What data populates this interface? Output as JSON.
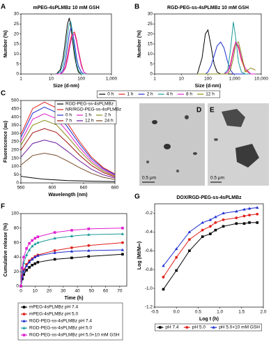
{
  "chart_data": [
    {
      "type": "line",
      "panel": "A",
      "title": "mPEG-4sPLMBz 10 mM GSH",
      "x_label": "Size (d-nm)",
      "y_label": "Number (%)",
      "log_x": true,
      "xlim": [
        1,
        1000
      ],
      "xticks": [
        1,
        10,
        100,
        {
          "value": 1000,
          "label": "1,000"
        }
      ],
      "ylim": [
        0,
        30
      ],
      "yticks": [
        0,
        5,
        10,
        15,
        20,
        25,
        30
      ],
      "x": [
        15,
        20,
        25,
        30,
        35,
        40,
        45,
        50,
        60,
        70,
        80,
        100,
        120,
        150
      ],
      "series": [
        {
          "color": "#000000",
          "values": [
            0,
            2,
            8,
            17,
            25,
            28,
            24,
            18,
            9,
            4,
            1,
            0,
            0,
            0
          ]
        },
        {
          "color": "#e0201b",
          "values": [
            0,
            0,
            1,
            4,
            9,
            14,
            18,
            20,
            21,
            17,
            12,
            5,
            1,
            0
          ]
        },
        {
          "color": "#1f2fd0",
          "values": [
            0,
            0,
            2,
            7,
            14,
            20,
            23,
            22,
            15,
            8,
            4,
            1,
            0,
            0
          ]
        },
        {
          "color": "#1a9a9a",
          "values": [
            0,
            1,
            5,
            12,
            20,
            25,
            26,
            22,
            12,
            5,
            2,
            0,
            0,
            0
          ]
        },
        {
          "color": "#e020d0",
          "values": [
            0,
            0,
            1,
            3,
            7,
            12,
            16,
            19,
            20,
            16,
            11,
            4,
            1,
            0
          ]
        }
      ]
    },
    {
      "type": "line",
      "panel": "B",
      "title": "RGD-PEG-ss-4sPLMBz 10 mM GSH",
      "x_label": "Size (d-nm)",
      "y_label": "Number (%)",
      "log_x": true,
      "legend": "bottom-row",
      "xlim": [
        1,
        10000
      ],
      "xticks": [
        1,
        10,
        100,
        {
          "value": 1000,
          "label": "1,000"
        },
        {
          "value": 10000,
          "label": "10,000"
        }
      ],
      "ylim": [
        0,
        30
      ],
      "yticks": [
        0,
        5,
        10,
        15,
        20,
        25,
        30
      ],
      "x": [
        40,
        60,
        80,
        100,
        130,
        170,
        220,
        300,
        400,
        550,
        700,
        900,
        1100,
        1400,
        1800,
        2500,
        4000,
        6000
      ],
      "series": [
        {
          "name": "0 h",
          "color": "#000000",
          "values": [
            0,
            8,
            20,
            22,
            14,
            5,
            1,
            0,
            0,
            0,
            0,
            0,
            0,
            0,
            0,
            0,
            0,
            0
          ]
        },
        {
          "name": "1 h",
          "color": "#e0201b",
          "values": [
            0,
            0,
            0,
            0,
            0,
            0,
            0,
            0,
            0,
            1,
            5,
            12,
            16,
            13,
            7,
            2,
            0,
            0
          ]
        },
        {
          "name": "2 h",
          "color": "#1f2fd0",
          "values": [
            0,
            0,
            0,
            1,
            4,
            9,
            14,
            16,
            13,
            6,
            2,
            0,
            0,
            0,
            0,
            0,
            0,
            0
          ]
        },
        {
          "name": "4 h",
          "color": "#1a9a9a",
          "values": [
            0,
            0,
            0,
            0,
            0,
            0,
            0,
            0,
            0,
            2,
            12,
            26,
            18,
            6,
            1,
            0,
            0,
            0
          ]
        },
        {
          "name": "8 h",
          "color": "#e020d0",
          "values": [
            0,
            0,
            0,
            0,
            0,
            0,
            0,
            0,
            0,
            1,
            4,
            11,
            16,
            14,
            8,
            3,
            0,
            0
          ]
        },
        {
          "name": "12 h",
          "color": "#8a8a1a",
          "values": [
            0,
            0,
            0,
            0,
            0,
            0,
            0,
            0,
            0,
            0,
            2,
            8,
            15,
            16,
            10,
            1,
            3,
            2
          ]
        }
      ]
    },
    {
      "type": "line",
      "panel": "C",
      "x_label": "Wavelength (nm)",
      "y_label": "Fluorescence (au)",
      "legend": "upper-right",
      "xlim": [
        560,
        680
      ],
      "xticks": [
        560,
        600,
        640,
        680
      ],
      "ylim": [
        0,
        500
      ],
      "yticks": [
        0,
        50,
        100,
        150,
        200,
        250,
        300,
        350,
        400,
        450,
        500
      ],
      "x": [
        560,
        575,
        590,
        605,
        620,
        635,
        650,
        665,
        680
      ],
      "series": [
        {
          "name": "RGD-PEG-ss-4sPLMBz",
          "color": "#000000",
          "values": [
            40,
            30,
            22,
            18,
            14,
            12,
            10,
            9,
            8
          ]
        },
        {
          "name": "NR/RGD-PEG-ss-4sPLMBz",
          "color": "#e0201b",
          "values": [
            294,
            451,
            490,
            456,
            358,
            250,
            157,
            93,
            54
          ]
        },
        {
          "name": "0 h",
          "color": "#1f2fd0",
          "values": [
            276,
            423,
            460,
            428,
            336,
            235,
            147,
            87,
            51
          ]
        },
        {
          "name": "1 h",
          "color": "#e020d0",
          "values": [
            252,
            386,
            420,
            391,
            307,
            214,
            134,
            80,
            46
          ]
        },
        {
          "name": "2 h",
          "color": "#8a8a1a",
          "values": [
            228,
            350,
            380,
            353,
            277,
            194,
            122,
            72,
            42
          ]
        },
        {
          "name": "7 h",
          "color": "#a01010",
          "values": [
            198,
            304,
            330,
            307,
            241,
            168,
            106,
            63,
            36
          ]
        },
        {
          "name": "12 h",
          "color": "#6a1a9a",
          "values": [
            156,
            239,
            260,
            242,
            190,
            133,
            83,
            49,
            29
          ]
        },
        {
          "name": "24 h",
          "color": "#7a4a2a",
          "values": [
            108,
            166,
            180,
            167,
            131,
            92,
            58,
            34,
            20
          ]
        }
      ]
    },
    {
      "type": "line",
      "panel": "F",
      "x_label": "Time (h)",
      "y_label": "Cumulative release (%)",
      "legend": "bottom-column",
      "markers": true,
      "xlim": [
        0,
        75
      ],
      "xticks": [
        0,
        10,
        20,
        30,
        40,
        50,
        60,
        70
      ],
      "ylim": [
        0,
        100
      ],
      "yticks": [
        0,
        20,
        40,
        60,
        80,
        100
      ],
      "x": [
        0,
        1,
        2,
        4,
        6,
        8,
        10,
        12,
        24,
        36,
        48,
        72
      ],
      "series": [
        {
          "name": "mPEG-4sPLMBz pH 7.4",
          "color": "#000000",
          "marker": "square",
          "values": [
            0,
            10,
            16,
            22,
            26,
            29,
            31,
            33,
            37,
            39,
            41,
            44
          ]
        },
        {
          "name": "mPEG-4sPLMBz pH 5.0",
          "color": "#e0201b",
          "marker": "circle",
          "values": [
            0,
            14,
            22,
            30,
            35,
            38,
            41,
            43,
            49,
            53,
            56,
            60
          ]
        },
        {
          "name": "RGD-PEG-ss-4sPLMBz pH 7.4",
          "color": "#1f2fd0",
          "marker": "triangle",
          "values": [
            0,
            13,
            20,
            28,
            33,
            37,
            40,
            42,
            46,
            48,
            49,
            50
          ]
        },
        {
          "name": "RGD-PEG-ss-4sPLMBz pH 5.0",
          "color": "#1a9a9a",
          "marker": "triangle",
          "values": [
            0,
            20,
            32,
            43,
            50,
            55,
            58,
            60,
            66,
            69,
            71,
            72
          ]
        },
        {
          "name": "RGD-PEG-ss-4sPLMBz pH 5.0+10 mM GSH",
          "color": "#e020d0",
          "marker": "square",
          "values": [
            0,
            25,
            40,
            52,
            59,
            63,
            66,
            68,
            74,
            77,
            79,
            80
          ]
        }
      ]
    },
    {
      "type": "line",
      "panel": "G",
      "title": "DOX/RGD-PEG-ss-4sPLMBz",
      "x_label": "Log t (h)",
      "y_label": "Log (Mt/M∞)",
      "legend": "bottom-row",
      "markers": true,
      "xlim": [
        -0.5,
        2.0
      ],
      "xticks": [
        -0.5,
        {
          "value": 0,
          "label": "0.0"
        },
        0.5,
        {
          "value": 1,
          "label": "1.0"
        },
        1.5,
        {
          "value": 2,
          "label": "2.0"
        }
      ],
      "ylim": [
        -1.2,
        -0.1
      ],
      "yticks": [
        -1.2,
        {
          "value": -1,
          "label": "-1.0"
        },
        -0.8,
        -0.6,
        -0.4,
        -0.2
      ],
      "x": [
        -0.3,
        0,
        0.3,
        0.6,
        0.78,
        0.9,
        1.08,
        1.38,
        1.56,
        1.68,
        1.86
      ],
      "series": [
        {
          "name": "pH 7.4",
          "color": "#000000",
          "marker": "square",
          "values": [
            -1.01,
            -0.81,
            -0.6,
            -0.45,
            -0.42,
            -0.38,
            -0.34,
            -0.31,
            -0.31,
            -0.3,
            -0.3
          ]
        },
        {
          "name": "pH 5.0",
          "color": "#e0201b",
          "marker": "circle",
          "values": [
            -0.88,
            -0.67,
            -0.48,
            -0.38,
            -0.34,
            -0.3,
            -0.27,
            -0.25,
            -0.23,
            -0.22,
            -0.21
          ]
        },
        {
          "name": "pH 5.0+10 mM GSH",
          "color": "#1f2fd0",
          "marker": "triangle",
          "values": [
            -0.76,
            -0.58,
            -0.4,
            -0.3,
            -0.27,
            -0.24,
            -0.2,
            -0.18,
            -0.16,
            -0.15,
            -0.14
          ]
        }
      ]
    }
  ],
  "images": [
    {
      "panel": "D",
      "scale_bar": "0.5 μm"
    },
    {
      "panel": "E",
      "scale_bar": "0.5 μm"
    }
  ]
}
